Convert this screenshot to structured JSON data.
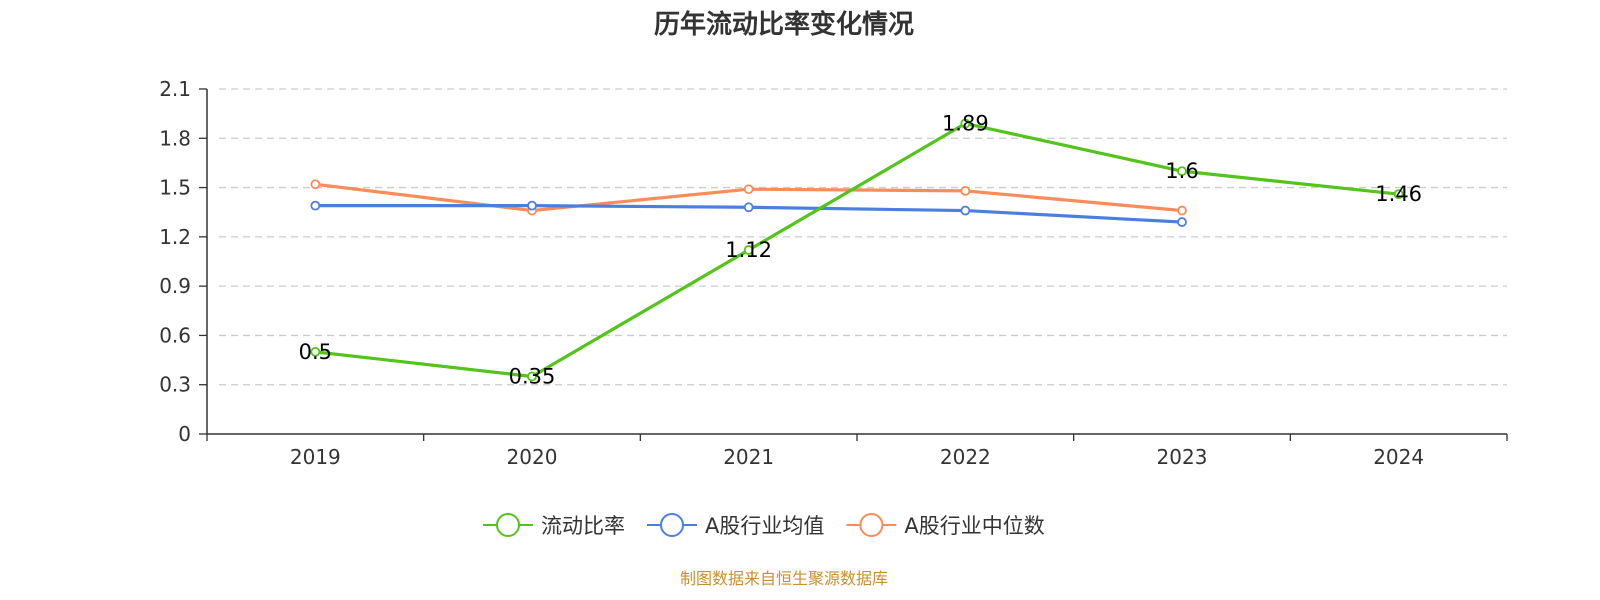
{
  "chart_data": {
    "type": "line",
    "title": "历年流动比率变化情况",
    "categories": [
      "2019",
      "2020",
      "2021",
      "2022",
      "2023",
      "2024"
    ],
    "ylim": [
      0,
      2.1
    ],
    "yticks": [
      "0",
      "0.3",
      "0.6",
      "0.9",
      "1.2",
      "1.5",
      "1.8",
      "2.1"
    ],
    "grid": true,
    "legend_position": "bottom",
    "series": [
      {
        "name": "流动比率",
        "color": "#52c41a",
        "values": [
          0.5,
          0.35,
          1.12,
          1.89,
          1.6,
          1.46
        ],
        "labels": [
          "0.5",
          "0.35",
          "1.12",
          "1.89",
          "1.6",
          "1.46"
        ],
        "show_labels": true
      },
      {
        "name": "A股行业均值",
        "color": "#4a7fe0",
        "values": [
          1.39,
          1.39,
          1.38,
          1.36,
          1.29,
          null
        ],
        "show_labels": false
      },
      {
        "name": "A股行业中位数",
        "color": "#fa8c5a",
        "values": [
          1.52,
          1.36,
          1.49,
          1.48,
          1.36,
          null
        ],
        "show_labels": false
      }
    ]
  },
  "source": "制图数据来自恒生聚源数据库"
}
